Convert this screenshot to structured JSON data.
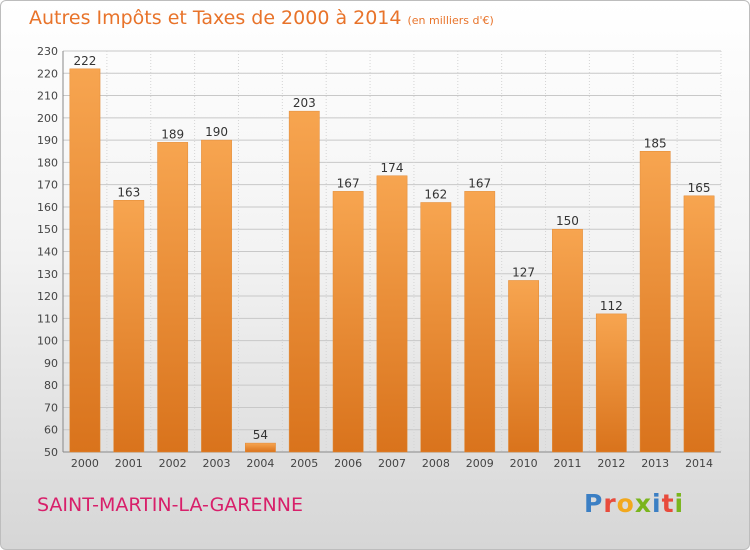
{
  "chart_data": {
    "type": "bar",
    "title": "Autres Impôts et Taxes de 2000 à 2014",
    "subtitle": "(en milliers d'€)",
    "categories": [
      "2000",
      "2001",
      "2002",
      "2003",
      "2004",
      "2005",
      "2006",
      "2007",
      "2008",
      "2009",
      "2010",
      "2011",
      "2012",
      "2013",
      "2014"
    ],
    "values": [
      222,
      163,
      189,
      190,
      54,
      203,
      167,
      174,
      162,
      167,
      127,
      150,
      112,
      185,
      165
    ],
    "ylim": [
      50,
      230
    ],
    "yticks": [
      50,
      60,
      70,
      80,
      90,
      100,
      110,
      120,
      130,
      140,
      150,
      160,
      170,
      180,
      190,
      200,
      210,
      220,
      230
    ],
    "grid": true,
    "bar_color": "#f29a3e",
    "xlabel": "",
    "ylabel": ""
  },
  "footer": {
    "town": "SAINT-MARTIN-LA-GARENNE"
  },
  "logo": {
    "text": "Proxiti",
    "letters": [
      {
        "char": "P",
        "color": "#3b7fc4"
      },
      {
        "char": "r",
        "color": "#e84b3c"
      },
      {
        "char": "o",
        "color": "#f2a81d"
      },
      {
        "char": "x",
        "color": "#7ab51d"
      },
      {
        "char": "i",
        "color": "#3b7fc4"
      },
      {
        "char": "t",
        "color": "#e84b3c"
      },
      {
        "char": "i",
        "color": "#7ab51d"
      }
    ]
  }
}
